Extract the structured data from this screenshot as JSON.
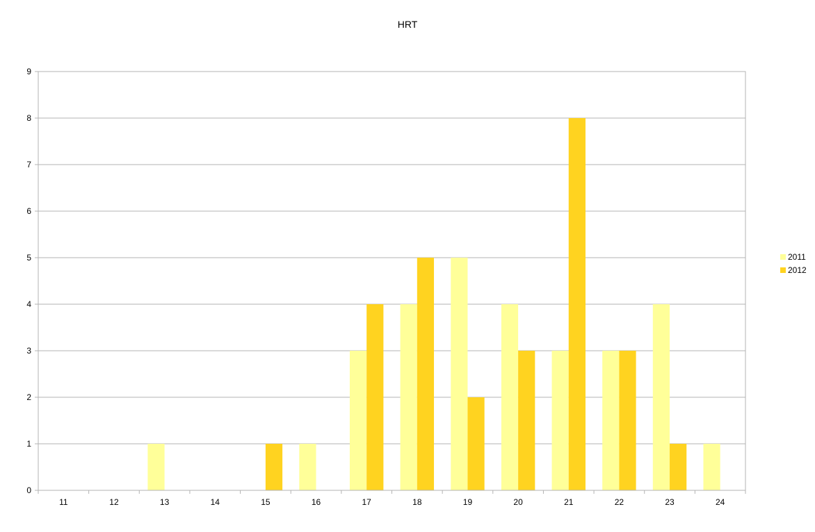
{
  "chart_data": {
    "type": "bar",
    "title": "HRT",
    "xlabel": "",
    "ylabel": "",
    "categories": [
      "11",
      "12",
      "13",
      "14",
      "15",
      "16",
      "17",
      "18",
      "19",
      "20",
      "21",
      "22",
      "23",
      "24"
    ],
    "series": [
      {
        "name": "2011",
        "color": "#FFFF99",
        "values": [
          0,
          0,
          1,
          0,
          0,
          1,
          3,
          4,
          5,
          4,
          3,
          3,
          4,
          1
        ]
      },
      {
        "name": "2012",
        "color": "#FFD320",
        "values": [
          0,
          0,
          0,
          0,
          1,
          0,
          4,
          5,
          2,
          3,
          8,
          3,
          1,
          0
        ]
      }
    ],
    "ylim": [
      0,
      9
    ],
    "yticks": [
      "0",
      "1",
      "2",
      "3",
      "4",
      "5",
      "6",
      "7",
      "8",
      "9"
    ],
    "grid": true,
    "legend": "right"
  }
}
